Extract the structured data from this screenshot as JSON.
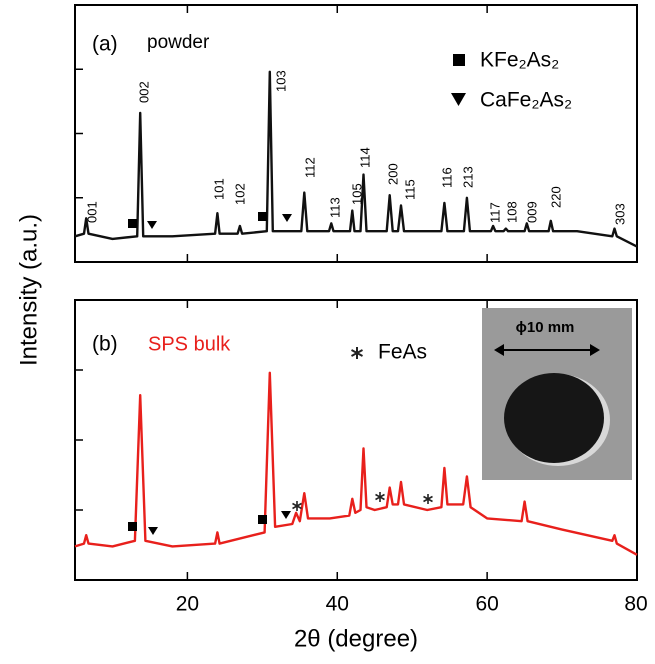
{
  "chart_data": [
    {
      "type": "line",
      "panel_label": "(a)",
      "sample": "powder",
      "color": "#111111",
      "ylabel": "Intensity (a.u.)",
      "legend": [
        "KFe₂As₂",
        "CaFe₂As₂"
      ],
      "peak_labels": [
        "001",
        "002",
        "101",
        "102",
        "103",
        "112",
        "113",
        "105",
        "114",
        "200",
        "115",
        "116",
        "213",
        "117",
        "108",
        "009",
        "220",
        "303"
      ],
      "xlim": [
        5,
        80
      ],
      "ylim": [
        0,
        100
      ],
      "x": [
        5,
        6.2,
        6.5,
        6.8,
        10,
        13.3,
        13.7,
        14.1,
        18,
        23.7,
        24,
        24.3,
        26.7,
        27,
        27.3,
        30.6,
        31,
        31.4,
        35.2,
        35.6,
        36,
        38.9,
        39.2,
        39.5,
        41.7,
        42,
        42.3,
        43.1,
        43.5,
        43.9,
        46.6,
        47,
        47.4,
        48.1,
        48.5,
        48.9,
        53.9,
        54.3,
        54.7,
        56.9,
        57.3,
        57.7,
        60.5,
        60.8,
        61.1,
        62.2,
        62.5,
        62.8,
        65,
        65.3,
        65.6,
        68.2,
        68.5,
        68.8,
        72,
        76.7,
        77,
        77.3,
        80
      ],
      "values": [
        10,
        11,
        17,
        11,
        9,
        10,
        58,
        10,
        10,
        11,
        19,
        11,
        11,
        14,
        11,
        12,
        74,
        12,
        12,
        27,
        12,
        12,
        15,
        12,
        12,
        20,
        12,
        12,
        34,
        12,
        12,
        26,
        12,
        12,
        22,
        12,
        12,
        23,
        12,
        12,
        25,
        12,
        12,
        14,
        12,
        12,
        13,
        12,
        12,
        15,
        12,
        12,
        16,
        12,
        12,
        10,
        13,
        10,
        6
      ]
    },
    {
      "type": "line",
      "panel_label": "(b)",
      "sample": "SPS bulk",
      "color": "#e8201c",
      "legend": [
        "FeAs"
      ],
      "inset_label": "ϕ10 mm",
      "xlabel": "2θ (degree)",
      "xlim": [
        5,
        80
      ],
      "ylim": [
        0,
        100
      ],
      "xticks": [
        20,
        40,
        60,
        80
      ],
      "x": [
        5,
        6.2,
        6.5,
        6.8,
        10,
        13,
        13.7,
        14.4,
        18,
        23.7,
        24,
        24.3,
        30.3,
        31,
        31.7,
        34,
        34.5,
        35,
        35.6,
        36.1,
        39,
        41.6,
        42,
        42.4,
        43.1,
        43.5,
        43.9,
        45,
        46.6,
        47,
        47.4,
        48.1,
        48.5,
        48.9,
        52,
        53.9,
        54.3,
        54.7,
        56.8,
        57.3,
        57.8,
        60,
        64.6,
        65,
        65.4,
        70,
        76.7,
        77,
        77.3,
        80
      ],
      "values": [
        12,
        13,
        16,
        13,
        12,
        14,
        66,
        14,
        12,
        13,
        17,
        13,
        17,
        74,
        19,
        20,
        24,
        21,
        31,
        22,
        22,
        23,
        29,
        24,
        25,
        47,
        26,
        25,
        26,
        33,
        27,
        27,
        35,
        27,
        25,
        26,
        40,
        27,
        27,
        37,
        26,
        22,
        21,
        28,
        21,
        18,
        14,
        16,
        13,
        9
      ]
    }
  ]
}
